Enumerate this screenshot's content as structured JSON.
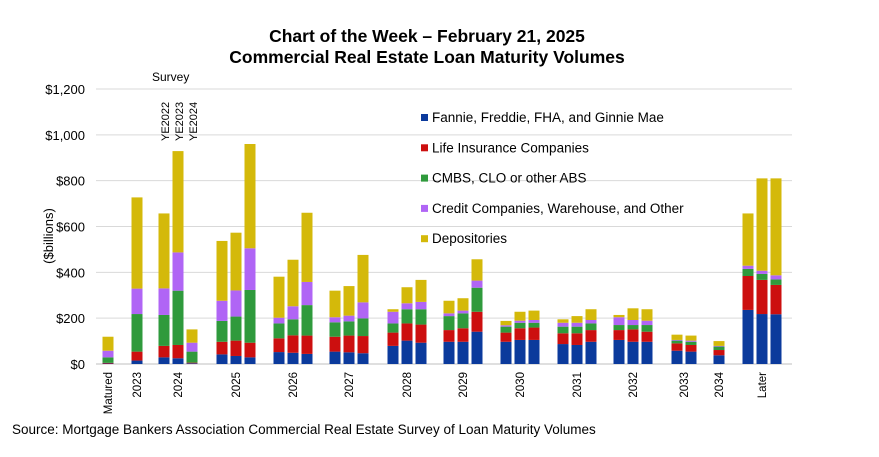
{
  "chart_data": {
    "type": "bar",
    "stacked": true,
    "title": "Chart of the Week – February 21, 2025",
    "subtitle": "Commercial Real Estate Loan Maturity Volumes",
    "xlabel": "",
    "ylabel": "($billions)",
    "ylim": [
      0,
      1200
    ],
    "yticks": [
      0,
      200,
      400,
      600,
      800,
      1000,
      1200
    ],
    "ytick_labels": [
      "$0",
      "$200",
      "$400",
      "$600",
      "$800",
      "$1,000",
      "$1,200"
    ],
    "grid": true,
    "legend_position": "top-right",
    "survey_annotation": {
      "label": "Survey",
      "surveys": [
        "YE2022",
        "YE2023",
        "YE2024"
      ]
    },
    "series": [
      {
        "name": "Fannie, Freddie, FHA, and Ginnie Mae",
        "color": "#0b3a9c"
      },
      {
        "name": "Life Insurance Companies",
        "color": "#cc0f0f"
      },
      {
        "name": "CMBS, CLO or other ABS",
        "color": "#2f9a3c"
      },
      {
        "name": "Credit Companies, Warehouse, and Other",
        "color": "#b065f5"
      },
      {
        "name": "Depositories",
        "color": "#d4b90a"
      }
    ],
    "groups": [
      {
        "label": "Matured",
        "bars": [
          {
            "survey": "YE2024",
            "values": [
              2,
              3,
              24,
              29,
              61
            ]
          }
        ]
      },
      {
        "label": "2023",
        "bars": [
          {
            "survey": "YE2022",
            "values": [
              15,
              39,
              164,
              111,
              398
            ]
          }
        ]
      },
      {
        "label": "2024",
        "bars": [
          {
            "survey": "YE2022",
            "values": [
              29,
              50,
              135,
              116,
              327
            ]
          },
          {
            "survey": "YE2023",
            "values": [
              25,
              58,
              237,
              167,
              442
            ]
          },
          {
            "survey": "YE2024",
            "values": [
              3,
              3,
              48,
              39,
              58
            ]
          }
        ]
      },
      {
        "label": "2025",
        "bars": [
          {
            "survey": "YE2022",
            "values": [
              42,
              55,
              91,
              88,
              261
            ]
          },
          {
            "survey": "YE2023",
            "values": [
              35,
              67,
              105,
              114,
              252
            ]
          },
          {
            "survey": "YE2024",
            "values": [
              29,
              64,
              230,
              182,
              455
            ]
          }
        ]
      },
      {
        "label": "2026",
        "bars": [
          {
            "survey": "YE2022",
            "values": [
              52,
              60,
              65,
              25,
              179
            ]
          },
          {
            "survey": "YE2023",
            "values": [
              49,
              76,
              70,
              57,
              203
            ]
          },
          {
            "survey": "YE2024",
            "values": [
              44,
              80,
              133,
              101,
              302
            ]
          }
        ]
      },
      {
        "label": "2027",
        "bars": [
          {
            "survey": "YE2022",
            "values": [
              54,
              65,
              63,
              22,
              116
            ]
          },
          {
            "survey": "YE2023",
            "values": [
              51,
              73,
              62,
              25,
              129
            ]
          },
          {
            "survey": "YE2024",
            "values": [
              47,
              75,
              77,
              70,
              207
            ]
          }
        ]
      },
      {
        "label": "2028",
        "bars": [
          {
            "survey": "YE2022",
            "values": [
              79,
              58,
              40,
              51,
              11
            ]
          },
          {
            "survey": "YE2023",
            "values": [
              102,
              75,
              62,
              26,
              70
            ]
          },
          {
            "survey": "YE2024",
            "values": [
              93,
              79,
              67,
              32,
              96
            ]
          }
        ]
      },
      {
        "label": "2029",
        "bars": [
          {
            "survey": "YE2022",
            "values": [
              97,
              51,
              61,
              12,
              55
            ]
          },
          {
            "survey": "YE2023",
            "values": [
              97,
              59,
              65,
              12,
              54
            ]
          },
          {
            "survey": "YE2024",
            "values": [
              141,
              87,
              105,
              31,
              93
            ]
          }
        ]
      },
      {
        "label": "2030",
        "bars": [
          {
            "survey": "YE2022",
            "values": [
              97,
              40,
              26,
              6,
              19
            ]
          },
          {
            "survey": "YE2023",
            "values": [
              105,
              51,
              24,
              9,
              39
            ]
          },
          {
            "survey": "YE2024",
            "values": [
              105,
              54,
              21,
              12,
              41
            ]
          }
        ]
      },
      {
        "label": "2031",
        "bars": [
          {
            "survey": "YE2022",
            "values": [
              87,
              47,
              29,
              17,
              15
            ]
          },
          {
            "survey": "YE2023",
            "values": [
              83,
              51,
              29,
              17,
              29
            ]
          },
          {
            "survey": "YE2024",
            "values": [
              97,
              51,
              29,
              15,
              47
            ]
          }
        ]
      },
      {
        "label": "2032",
        "bars": [
          {
            "survey": "YE2022",
            "values": [
              105,
              43,
              22,
              34,
              10
            ]
          },
          {
            "survey": "YE2023",
            "values": [
              97,
              54,
              19,
              22,
              51
            ]
          },
          {
            "survey": "YE2024",
            "values": [
              97,
              44,
              29,
              19,
              50
            ]
          }
        ]
      },
      {
        "label": "2033",
        "bars": [
          {
            "survey": "YE2023",
            "values": [
              58,
              32,
              12,
              3,
              23
            ]
          },
          {
            "survey": "YE2024",
            "values": [
              54,
              29,
              14,
              5,
              22
            ]
          }
        ]
      },
      {
        "label": "2034",
        "bars": [
          {
            "survey": "YE2024",
            "values": [
              38,
              23,
              15,
              3,
              21
            ]
          }
        ]
      },
      {
        "label": "Later",
        "bars": [
          {
            "survey": "YE2022",
            "values": [
              236,
              148,
              31,
              14,
              228
            ]
          },
          {
            "survey": "YE2023",
            "values": [
              218,
              149,
              26,
              14,
              403
            ]
          },
          {
            "survey": "YE2024",
            "values": [
              217,
              128,
              24,
              18,
              423
            ]
          }
        ]
      }
    ]
  },
  "source": "Source: Mortgage Bankers Association Commercial Real Estate Survey of Loan Maturity Volumes"
}
